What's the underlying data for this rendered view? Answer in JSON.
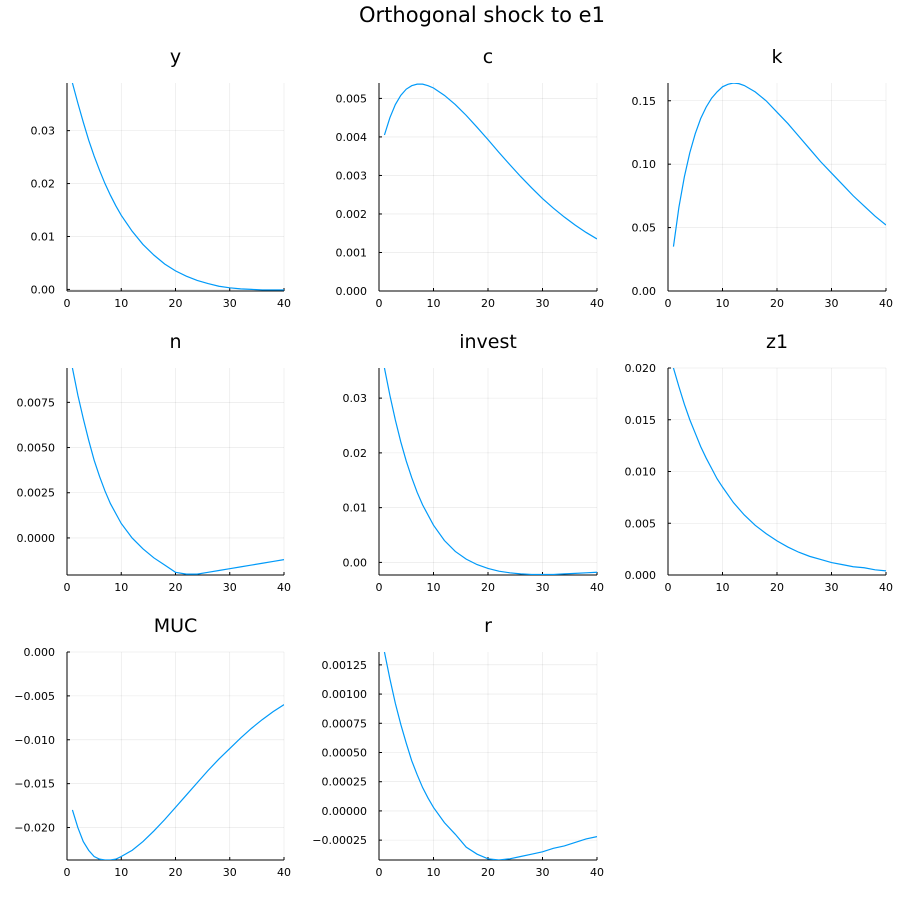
{
  "figure": {
    "title": "Orthogonal shock to e1",
    "line_color": "#009af9"
  },
  "chart_data": [
    {
      "type": "line",
      "title": "y",
      "xlim": [
        0,
        40
      ],
      "ylim": [
        -0.0003,
        0.039
      ],
      "xticks": [
        0,
        10,
        20,
        30,
        40
      ],
      "xtick_labels": [
        "0",
        "10",
        "20",
        "30",
        "40"
      ],
      "yticks": [
        0,
        0.01,
        0.02,
        0.03
      ],
      "ytick_labels": [
        "0.00",
        "0.01",
        "0.02",
        "0.03"
      ],
      "x": [
        1,
        2,
        3,
        4,
        5,
        6,
        7,
        8,
        9,
        10,
        12,
        14,
        16,
        18,
        20,
        22,
        24,
        26,
        28,
        30,
        32,
        34,
        36,
        38,
        40
      ],
      "y": [
        0.039,
        0.0352,
        0.0316,
        0.0282,
        0.0252,
        0.0225,
        0.02,
        0.0178,
        0.0158,
        0.014,
        0.011,
        0.0085,
        0.0065,
        0.0048,
        0.0035,
        0.0025,
        0.0017,
        0.0011,
        0.0006,
        0.0003,
        0.0001,
        0.0,
        -0.0001,
        -0.0001,
        -0.0001
      ],
      "grid": true
    },
    {
      "type": "line",
      "title": "c",
      "xlim": [
        0,
        40
      ],
      "ylim": [
        0,
        0.0054
      ],
      "xticks": [
        0,
        10,
        20,
        30,
        40
      ],
      "xtick_labels": [
        "0",
        "10",
        "20",
        "30",
        "40"
      ],
      "yticks": [
        0,
        0.001,
        0.002,
        0.003,
        0.004,
        0.005
      ],
      "ytick_labels": [
        "0.000",
        "0.001",
        "0.002",
        "0.003",
        "0.004",
        "0.005"
      ],
      "x": [
        1,
        2,
        3,
        4,
        5,
        6,
        7,
        8,
        9,
        10,
        12,
        14,
        16,
        18,
        20,
        22,
        24,
        26,
        28,
        30,
        32,
        34,
        36,
        38,
        40
      ],
      "y": [
        0.00405,
        0.0045,
        0.00484,
        0.00508,
        0.00524,
        0.00533,
        0.00537,
        0.00537,
        0.00533,
        0.00527,
        0.00508,
        0.00484,
        0.00456,
        0.00425,
        0.00393,
        0.0036,
        0.00328,
        0.00297,
        0.00268,
        0.0024,
        0.00215,
        0.00192,
        0.00171,
        0.00152,
        0.00135
      ],
      "grid": true
    },
    {
      "type": "line",
      "title": "k",
      "xlim": [
        0,
        40
      ],
      "ylim": [
        0,
        0.164
      ],
      "xticks": [
        0,
        10,
        20,
        30,
        40
      ],
      "xtick_labels": [
        "0",
        "10",
        "20",
        "30",
        "40"
      ],
      "yticks": [
        0,
        0.05,
        0.1,
        0.15
      ],
      "ytick_labels": [
        "0.00",
        "0.05",
        "0.10",
        "0.15"
      ],
      "x": [
        1,
        2,
        3,
        4,
        5,
        6,
        7,
        8,
        9,
        10,
        11,
        12,
        13,
        14,
        16,
        18,
        20,
        22,
        24,
        26,
        28,
        30,
        32,
        34,
        36,
        38,
        40
      ],
      "y": [
        0.035,
        0.066,
        0.09,
        0.109,
        0.124,
        0.136,
        0.145,
        0.152,
        0.157,
        0.161,
        0.163,
        0.164,
        0.1635,
        0.162,
        0.157,
        0.15,
        0.141,
        0.132,
        0.122,
        0.112,
        0.102,
        0.093,
        0.084,
        0.075,
        0.067,
        0.059,
        0.052
      ],
      "grid": true
    },
    {
      "type": "line",
      "title": "n",
      "xlim": [
        0,
        40
      ],
      "ylim": [
        -0.00205,
        0.0094
      ],
      "xticks": [
        0,
        10,
        20,
        30,
        40
      ],
      "xtick_labels": [
        "0",
        "10",
        "20",
        "30",
        "40"
      ],
      "yticks": [
        0,
        0.0025,
        0.005,
        0.0075
      ],
      "ytick_labels": [
        "0.0000",
        "0.0025",
        "0.0050",
        "0.0075"
      ],
      "x": [
        1,
        2,
        3,
        4,
        5,
        6,
        7,
        8,
        10,
        12,
        14,
        16,
        18,
        20,
        22,
        24,
        26,
        28,
        30,
        32,
        34,
        36,
        38,
        40
      ],
      "y": [
        0.0094,
        0.0079,
        0.0066,
        0.0054,
        0.0043,
        0.0034,
        0.0026,
        0.0019,
        0.0008,
        0.0,
        -0.0006,
        -0.0011,
        -0.0015,
        -0.0019,
        -0.002,
        -0.002,
        -0.0019,
        -0.0018,
        -0.0017,
        -0.0016,
        -0.0015,
        -0.0014,
        -0.0013,
        -0.0012
      ],
      "grid": true
    },
    {
      "type": "line",
      "title": "invest",
      "xlim": [
        0,
        40
      ],
      "ylim": [
        -0.0023,
        0.0355
      ],
      "xticks": [
        0,
        10,
        20,
        30,
        40
      ],
      "xtick_labels": [
        "0",
        "10",
        "20",
        "30",
        "40"
      ],
      "yticks": [
        0,
        0.01,
        0.02,
        0.03
      ],
      "ytick_labels": [
        "0.00",
        "0.01",
        "0.02",
        "0.03"
      ],
      "x": [
        1,
        2,
        3,
        4,
        5,
        6,
        7,
        8,
        10,
        12,
        14,
        16,
        18,
        20,
        22,
        24,
        26,
        28,
        30,
        32,
        34,
        36,
        38,
        40
      ],
      "y": [
        0.0355,
        0.0305,
        0.026,
        0.022,
        0.0185,
        0.0155,
        0.0128,
        0.0105,
        0.0068,
        0.004,
        0.002,
        0.0006,
        -0.0004,
        -0.0011,
        -0.0016,
        -0.0019,
        -0.0021,
        -0.0022,
        -0.0022,
        -0.0022,
        -0.0021,
        -0.002,
        -0.0019,
        -0.0018
      ],
      "grid": true
    },
    {
      "type": "line",
      "title": "z1",
      "xlim": [
        0,
        40
      ],
      "ylim": [
        0,
        0.02
      ],
      "xticks": [
        0,
        10,
        20,
        30,
        40
      ],
      "xtick_labels": [
        "0",
        "10",
        "20",
        "30",
        "40"
      ],
      "yticks": [
        0,
        0.005,
        0.01,
        0.015,
        0.02
      ],
      "ytick_labels": [
        "0.000",
        "0.005",
        "0.010",
        "0.015",
        "0.020"
      ],
      "x": [
        1,
        2,
        3,
        4,
        5,
        6,
        7,
        8,
        9,
        10,
        12,
        14,
        16,
        18,
        20,
        22,
        24,
        26,
        28,
        30,
        32,
        34,
        36,
        38,
        40
      ],
      "y": [
        0.02,
        0.0182,
        0.0165,
        0.015,
        0.0137,
        0.0124,
        0.0113,
        0.0103,
        0.0093,
        0.0085,
        0.007,
        0.0058,
        0.0048,
        0.004,
        0.0033,
        0.0027,
        0.0022,
        0.0018,
        0.0015,
        0.0012,
        0.001,
        0.0008,
        0.0007,
        0.0005,
        0.0004
      ],
      "grid": true
    },
    {
      "type": "line",
      "title": "MUC",
      "xlim": [
        0,
        40
      ],
      "ylim": [
        -0.0237,
        0
      ],
      "xticks": [
        0,
        10,
        20,
        30,
        40
      ],
      "xtick_labels": [
        "0",
        "10",
        "20",
        "30",
        "40"
      ],
      "yticks": [
        -0.02,
        -0.015,
        -0.01,
        -0.005,
        0
      ],
      "ytick_labels": [
        "−0.020",
        "−0.015",
        "−0.010",
        "−0.005",
        "0.000"
      ],
      "x": [
        1,
        2,
        3,
        4,
        5,
        6,
        7,
        8,
        9,
        10,
        12,
        14,
        16,
        18,
        20,
        22,
        24,
        26,
        28,
        30,
        32,
        34,
        36,
        38,
        40
      ],
      "y": [
        -0.018,
        -0.02,
        -0.0216,
        -0.0226,
        -0.0233,
        -0.0236,
        -0.0237,
        -0.0237,
        -0.0236,
        -0.0233,
        -0.0226,
        -0.0216,
        -0.0204,
        -0.0191,
        -0.0177,
        -0.0163,
        -0.0149,
        -0.0135,
        -0.0122,
        -0.011,
        -0.0098,
        -0.0087,
        -0.0077,
        -0.0068,
        -0.006
      ],
      "grid": true
    },
    {
      "type": "line",
      "title": "r",
      "xlim": [
        0,
        40
      ],
      "ylim": [
        -0.00042,
        0.00136
      ],
      "xticks": [
        0,
        10,
        20,
        30,
        40
      ],
      "xtick_labels": [
        "0",
        "10",
        "20",
        "30",
        "40"
      ],
      "yticks": [
        -0.00025,
        0,
        0.00025,
        0.0005,
        0.00075,
        0.001,
        0.00125
      ],
      "ytick_labels": [
        "−0.00025",
        "0.00000",
        "0.00025",
        "0.00050",
        "0.00075",
        "0.00100",
        "0.00125"
      ],
      "x": [
        1,
        2,
        3,
        4,
        5,
        6,
        7,
        8,
        9,
        10,
        12,
        14,
        16,
        18,
        20,
        22,
        24,
        26,
        28,
        30,
        32,
        34,
        36,
        38,
        40
      ],
      "y": [
        0.00136,
        0.00113,
        0.00092,
        0.00074,
        0.00058,
        0.00043,
        0.00031,
        0.0002,
        0.00011,
        3e-05,
        -0.0001,
        -0.0002,
        -0.00031,
        -0.00037,
        -0.00041,
        -0.00042,
        -0.00041,
        -0.00039,
        -0.00037,
        -0.00035,
        -0.00032,
        -0.0003,
        -0.00027,
        -0.00024,
        -0.00022
      ],
      "grid": true
    }
  ]
}
